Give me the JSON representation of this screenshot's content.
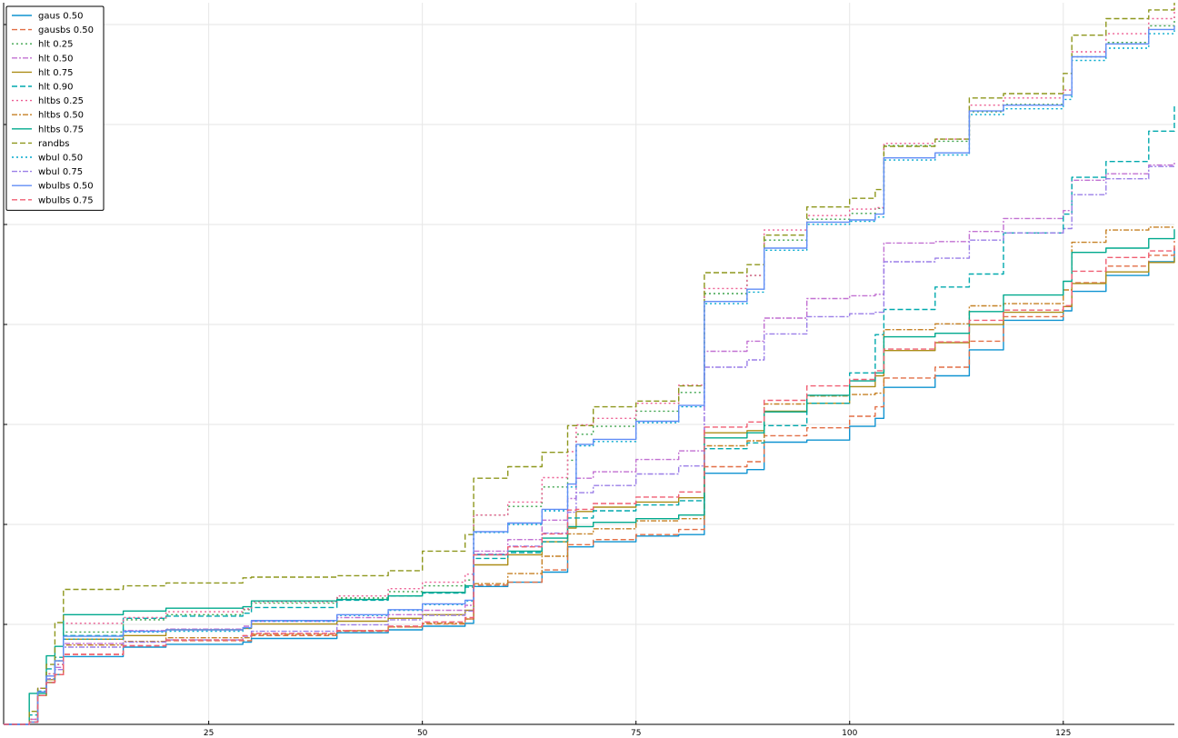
{
  "chart_data": {
    "type": "line",
    "title": "",
    "xlabel": "",
    "ylabel": "",
    "xlim": [
      1,
      138
    ],
    "ylim": [
      0,
      1
    ],
    "x_ticks": [
      25,
      50,
      75,
      100,
      125
    ],
    "y_tick_count": 7,
    "grid": true,
    "legend_position": "top-left",
    "x": [
      1,
      4,
      5,
      6,
      7,
      8,
      15,
      20,
      29,
      30,
      40,
      46,
      50,
      55,
      56,
      60,
      64,
      67,
      68,
      70,
      75,
      80,
      82,
      83,
      88,
      90,
      95,
      100,
      103,
      104,
      110,
      114,
      118,
      125,
      126,
      130,
      135,
      138
    ],
    "series": [
      {
        "name": "gaus 0.50",
        "color": "#0f93d1",
        "dash": "solid",
        "values": [
          0,
          0.003,
          0.04,
          0.058,
          0.069,
          0.094,
          0.107,
          0.111,
          0.114,
          0.119,
          0.127,
          0.131,
          0.136,
          0.14,
          0.191,
          0.197,
          0.211,
          0.246,
          0.246,
          0.253,
          0.261,
          0.263,
          0.263,
          0.348,
          0.353,
          0.391,
          0.394,
          0.413,
          0.424,
          0.467,
          0.483,
          0.519,
          0.56,
          0.573,
          0.6,
          0.622,
          0.641,
          0.66
        ]
      },
      {
        "name": "gausbs 0.50",
        "color": "#e26f46",
        "dash": "6,3",
        "values": [
          0,
          0.003,
          0.04,
          0.058,
          0.069,
          0.097,
          0.109,
          0.116,
          0.116,
          0.123,
          0.129,
          0.135,
          0.139,
          0.146,
          0.193,
          0.197,
          0.214,
          0.249,
          0.249,
          0.256,
          0.263,
          0.27,
          0.27,
          0.357,
          0.364,
          0.4,
          0.411,
          0.427,
          0.44,
          0.48,
          0.495,
          0.531,
          0.565,
          0.58,
          0.612,
          0.635,
          0.65,
          0.67
        ]
      },
      {
        "name": "hlt 0.25",
        "color": "#3da44d",
        "dash": "2,3",
        "values": [
          0,
          0.007,
          0.05,
          0.07,
          0.083,
          0.128,
          0.145,
          0.152,
          0.159,
          0.168,
          0.175,
          0.184,
          0.192,
          0.2,
          0.29,
          0.302,
          0.329,
          0.366,
          0.402,
          0.413,
          0.434,
          0.46,
          0.46,
          0.597,
          0.622,
          0.671,
          0.7,
          0.708,
          0.715,
          0.802,
          0.808,
          0.849,
          0.859,
          0.872,
          0.925,
          0.945,
          0.968,
          0.98
        ]
      },
      {
        "name": "hlt 0.50",
        "color": "#c271d2",
        "dash": "6,2,2,2",
        "values": [
          0,
          0.007,
          0.05,
          0.067,
          0.079,
          0.112,
          0.13,
          0.132,
          0.136,
          0.143,
          0.148,
          0.152,
          0.158,
          0.165,
          0.24,
          0.256,
          0.283,
          0.313,
          0.341,
          0.35,
          0.367,
          0.379,
          0.379,
          0.517,
          0.531,
          0.563,
          0.59,
          0.594,
          0.596,
          0.667,
          0.669,
          0.683,
          0.701,
          0.712,
          0.754,
          0.763,
          0.775,
          0.781
        ]
      },
      {
        "name": "hlt 0.75",
        "color": "#ac8d18",
        "dash": "solid",
        "values": [
          0,
          0.003,
          0.04,
          0.062,
          0.088,
          0.118,
          0.123,
          0.131,
          0.133,
          0.139,
          0.143,
          0.147,
          0.152,
          0.158,
          0.221,
          0.235,
          0.253,
          0.272,
          0.295,
          0.301,
          0.308,
          0.314,
          0.314,
          0.404,
          0.407,
          0.434,
          0.445,
          0.468,
          0.483,
          0.518,
          0.529,
          0.554,
          0.571,
          0.579,
          0.611,
          0.627,
          0.64,
          0.647
        ]
      },
      {
        "name": "hlt 0.90",
        "color": "#00a9ad",
        "dash": "6,3",
        "values": [
          0,
          0.013,
          0.046,
          0.077,
          0.093,
          0.123,
          0.147,
          0.15,
          0.154,
          0.162,
          0.172,
          0.178,
          0.182,
          0.19,
          0.23,
          0.238,
          0.253,
          0.286,
          0.286,
          0.296,
          0.304,
          0.31,
          0.31,
          0.382,
          0.39,
          0.414,
          0.445,
          0.487,
          0.54,
          0.575,
          0.606,
          0.624,
          0.681,
          0.707,
          0.758,
          0.78,
          0.822,
          0.86
        ]
      },
      {
        "name": "hltbs 0.25",
        "color": "#ed5d92",
        "dash": "2,3",
        "values": [
          0,
          0.007,
          0.05,
          0.07,
          0.083,
          0.14,
          0.148,
          0.156,
          0.16,
          0.17,
          0.178,
          0.188,
          0.197,
          0.208,
          0.29,
          0.308,
          0.342,
          0.378,
          0.415,
          0.424,
          0.445,
          0.47,
          0.47,
          0.604,
          0.622,
          0.685,
          0.705,
          0.714,
          0.716,
          0.805,
          0.811,
          0.858,
          0.868,
          0.879,
          0.932,
          0.957,
          0.978,
          0.995
        ]
      },
      {
        "name": "hltbs 0.50",
        "color": "#c68125",
        "dash": "6,2,2,2",
        "values": [
          0,
          0.003,
          0.04,
          0.058,
          0.069,
          0.11,
          0.115,
          0.12,
          0.12,
          0.125,
          0.13,
          0.135,
          0.14,
          0.146,
          0.195,
          0.209,
          0.233,
          0.264,
          0.264,
          0.271,
          0.282,
          0.285,
          0.285,
          0.386,
          0.393,
          0.444,
          0.455,
          0.457,
          0.459,
          0.547,
          0.555,
          0.58,
          0.583,
          0.602,
          0.668,
          0.685,
          0.689,
          0.69
        ]
      },
      {
        "name": "hltbs 0.75",
        "color": "#00a98d",
        "dash": "solid",
        "values": [
          0,
          0.043,
          0.043,
          0.095,
          0.108,
          0.152,
          0.157,
          0.161,
          0.163,
          0.171,
          0.173,
          0.178,
          0.183,
          0.192,
          0.235,
          0.24,
          0.258,
          0.274,
          0.274,
          0.28,
          0.285,
          0.29,
          0.29,
          0.397,
          0.404,
          0.433,
          0.456,
          0.476,
          0.487,
          0.537,
          0.542,
          0.572,
          0.595,
          0.614,
          0.654,
          0.66,
          0.673,
          0.686
        ]
      },
      {
        "name": "randbs",
        "color": "#8e971d",
        "dash": "6,3",
        "values": [
          0,
          0.018,
          0.05,
          0.083,
          0.141,
          0.187,
          0.192,
          0.196,
          0.203,
          0.204,
          0.206,
          0.213,
          0.24,
          0.263,
          0.341,
          0.357,
          0.377,
          0.414,
          0.414,
          0.44,
          0.448,
          0.469,
          0.469,
          0.626,
          0.637,
          0.678,
          0.717,
          0.729,
          0.741,
          0.801,
          0.811,
          0.868,
          0.874,
          0.902,
          0.955,
          0.978,
          0.99,
          1
        ]
      },
      {
        "name": "wbul 0.50",
        "color": "#00a9cd",
        "dash": "2,3",
        "values": [
          0,
          0.003,
          0.045,
          0.063,
          0.088,
          0.118,
          0.128,
          0.129,
          0.133,
          0.143,
          0.151,
          0.158,
          0.166,
          0.171,
          0.266,
          0.277,
          0.296,
          0.329,
          0.386,
          0.392,
          0.418,
          0.44,
          0.44,
          0.583,
          0.599,
          0.657,
          0.693,
          0.697,
          0.703,
          0.782,
          0.789,
          0.845,
          0.853,
          0.866,
          0.92,
          0.937,
          0.957,
          0.962
        ]
      },
      {
        "name": "wbul 0.75",
        "color": "#9b7fe8",
        "dash": "6,2,2,2",
        "values": [
          0,
          0.003,
          0.045,
          0.063,
          0.076,
          0.107,
          0.114,
          0.117,
          0.122,
          0.129,
          0.138,
          0.145,
          0.151,
          0.157,
          0.236,
          0.247,
          0.265,
          0.294,
          0.321,
          0.331,
          0.347,
          0.358,
          0.358,
          0.495,
          0.505,
          0.541,
          0.565,
          0.569,
          0.571,
          0.641,
          0.646,
          0.671,
          0.681,
          0.687,
          0.734,
          0.756,
          0.773,
          0.773
        ]
      },
      {
        "name": "wbulbs 0.50",
        "color": "#618df6",
        "dash": "solid",
        "values": [
          0,
          0.003,
          0.045,
          0.067,
          0.088,
          0.122,
          0.129,
          0.131,
          0.134,
          0.144,
          0.152,
          0.159,
          0.167,
          0.172,
          0.267,
          0.279,
          0.298,
          0.333,
          0.388,
          0.395,
          0.42,
          0.442,
          0.442,
          0.586,
          0.603,
          0.66,
          0.696,
          0.699,
          0.707,
          0.785,
          0.792,
          0.85,
          0.858,
          0.872,
          0.925,
          0.943,
          0.963,
          0.968
        ]
      },
      {
        "name": "wbulbs 0.75",
        "color": "#f05f73",
        "dash": "6,3",
        "values": [
          0,
          0.003,
          0.04,
          0.058,
          0.069,
          0.097,
          0.109,
          0.117,
          0.123,
          0.126,
          0.13,
          0.136,
          0.142,
          0.148,
          0.235,
          0.246,
          0.264,
          0.297,
          0.298,
          0.306,
          0.315,
          0.322,
          0.322,
          0.412,
          0.419,
          0.449,
          0.469,
          0.478,
          0.49,
          0.52,
          0.53,
          0.56,
          0.574,
          0.58,
          0.628,
          0.647,
          0.656,
          0.661
        ]
      }
    ]
  }
}
